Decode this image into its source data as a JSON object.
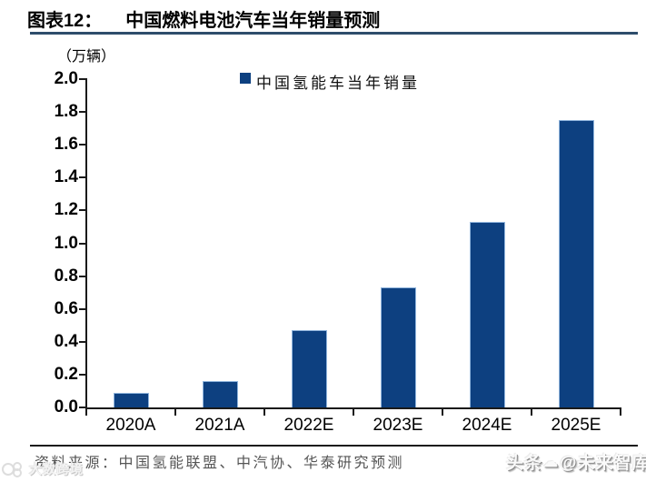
{
  "header": {
    "title_prefix": "图表12：",
    "title_text": "中国燃料电池汽车当年销量预测"
  },
  "chart_data": {
    "type": "bar",
    "title": "中国燃料电池汽车当年销量预测",
    "unit_label": "（万辆）",
    "legend": [
      {
        "label": "中国氢能车当年销量",
        "color": "#0d4080"
      }
    ],
    "legend_position": "top-center",
    "categories": [
      "2020A",
      "2021A",
      "2022E",
      "2023E",
      "2024E",
      "2025E"
    ],
    "values": [
      0.09,
      0.16,
      0.47,
      0.73,
      1.13,
      1.75
    ],
    "ylabel": "",
    "xlabel": "",
    "ylim": [
      0,
      2.0
    ],
    "ytick_labels": [
      "0.0",
      "0.2",
      "0.4",
      "0.6",
      "0.8",
      "1.0",
      "1.2",
      "1.4",
      "1.6",
      "1.8",
      "2.0"
    ],
    "grid": false,
    "bar_color": "#0d4080",
    "bar_edge_color": "#8fb4dc",
    "axis_color": "#1a1a1a"
  },
  "footer": {
    "source": "资料来源：中国氢能联盟、中汽协、华泰研究预测"
  },
  "watermarks": {
    "bottom_right_prefix": "头条",
    "bottom_right_suffix": "@未来智库",
    "bottom_left": "大数跨境"
  },
  "colors": {
    "bar": "#0d4080",
    "title_underline": "#2e4d6b",
    "axis": "#1a1a1a",
    "footer_line": "#1a1a1a",
    "source_text": "#555555"
  }
}
